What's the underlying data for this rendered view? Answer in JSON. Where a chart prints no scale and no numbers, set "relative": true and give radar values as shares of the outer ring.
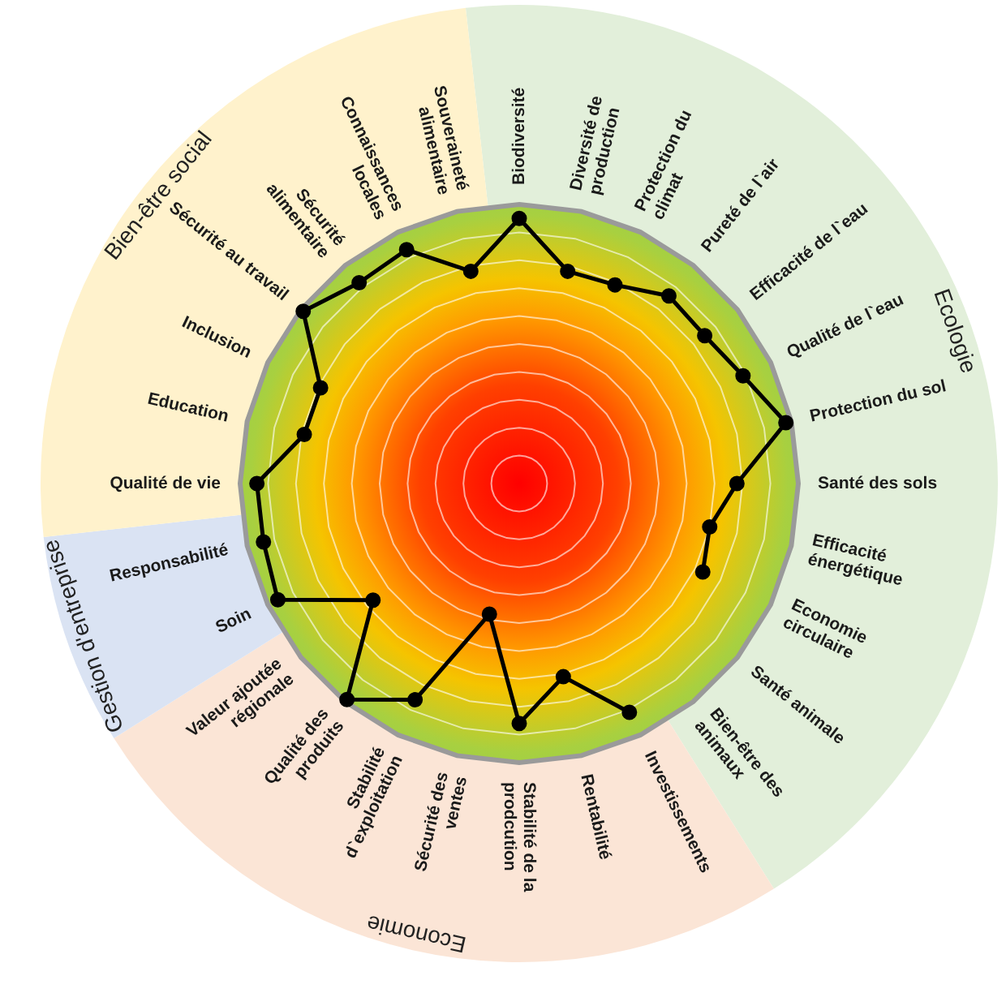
{
  "chart_data": {
    "type": "radar",
    "relative": true,
    "grid": true,
    "marker": "circle",
    "line_style": "solid",
    "categories": [
      "Biodiversité",
      "Diversité de production",
      "Protection du climat",
      "Pureté de l`air",
      "Efficacité de l`eau",
      "Qualité de l`eau",
      "Protection du sol",
      "Santé des sols",
      "Efficacité énergétique",
      "Economie circulaire",
      "Santé animale",
      "Bien-être des animaux",
      "Investissements",
      "Rentabilité",
      "Stabilité de la prodcution",
      "Sécurité des ventes",
      "Stabilité d`exploitation",
      "Qualité des produits",
      "Valeur ajoutée régionale",
      "Soin",
      "Responsabilité",
      "Qualité de vie",
      "Education",
      "Inclusion",
      "Sécurité au travail",
      "Sécurité alimentaire",
      "Connaissances locales",
      "Souveraineté alimentaire"
    ],
    "series": [
      {
        "color": "#000000",
        "values": [
          0.95,
          0.78,
          0.79,
          0.86,
          0.85,
          0.89,
          0.98,
          0.78,
          0.7,
          0.73,
          null,
          null,
          0.91,
          0.71,
          0.86,
          0.48,
          0.86,
          0.99,
          0.67,
          0.96,
          0.94,
          0.94,
          0.79,
          0.79,
          0.99,
          0.92,
          0.93,
          0.78
        ]
      }
    ],
    "annotations": [
      "Ecologie",
      "Economie",
      "Gestion d'entreprise",
      "Bien-être social"
    ]
  }
}
